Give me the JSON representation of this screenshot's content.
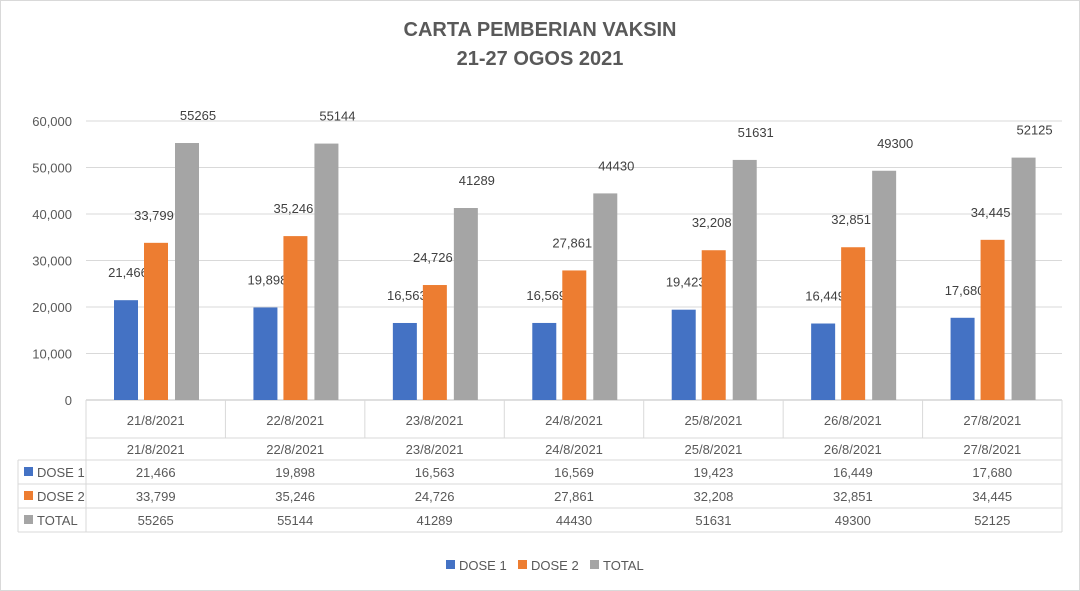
{
  "chart_data": {
    "type": "bar",
    "title": [
      "CARTA PEMBERIAN VAKSIN",
      "21-27 OGOS 2021"
    ],
    "xlabel": "",
    "ylabel": "",
    "ylim": [
      0,
      60000
    ],
    "yticks": [
      0,
      10000,
      20000,
      30000,
      40000,
      50000,
      60000
    ],
    "ytick_labels": [
      "0",
      "10,000",
      "20,000",
      "30,000",
      "40,000",
      "50,000",
      "60,000"
    ],
    "grid": true,
    "legend": "bottom",
    "categories": [
      "21/8/2021",
      "22/8/2021",
      "23/8/2021",
      "24/8/2021",
      "25/8/2021",
      "26/8/2021",
      "27/8/2021"
    ],
    "series": [
      {
        "name": "DOSE 1",
        "color": "#4472C4",
        "values": [
          21466,
          19898,
          16563,
          16569,
          19423,
          16449,
          17680
        ],
        "labels": [
          "21,466",
          "19,898",
          "16,563",
          "16,569",
          "19,423",
          "16,449",
          "17,680"
        ]
      },
      {
        "name": "DOSE 2",
        "color": "#ED7D31",
        "values": [
          33799,
          35246,
          24726,
          27861,
          32208,
          32851,
          34445
        ],
        "labels": [
          "33,799",
          "35,246",
          "24,726",
          "27,861",
          "32,208",
          "32,851",
          "34,445"
        ]
      },
      {
        "name": "TOTAL",
        "color": "#A5A5A5",
        "values": [
          55265,
          55144,
          41289,
          44430,
          51631,
          49300,
          52125
        ],
        "labels": [
          "55265",
          "55144",
          "41289",
          "44430",
          "51631",
          "49300",
          "52125"
        ]
      }
    ],
    "data_table": true
  }
}
